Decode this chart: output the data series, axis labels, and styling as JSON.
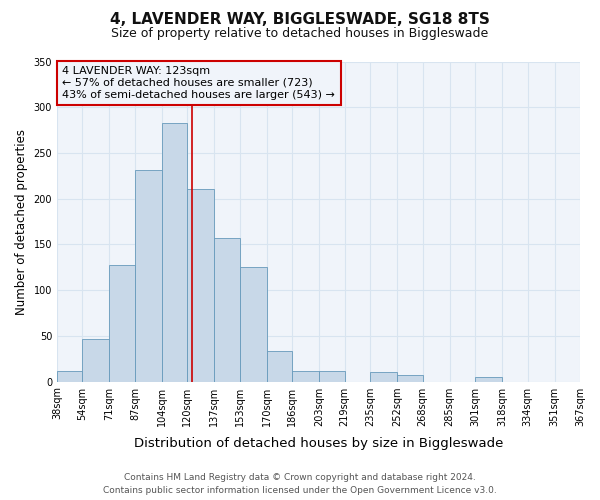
{
  "title": "4, LAVENDER WAY, BIGGLESWADE, SG18 8TS",
  "subtitle": "Size of property relative to detached houses in Biggleswade",
  "xlabel": "Distribution of detached houses by size in Biggleswade",
  "ylabel": "Number of detached properties",
  "bin_labels": [
    "38sqm",
    "54sqm",
    "71sqm",
    "87sqm",
    "104sqm",
    "120sqm",
    "137sqm",
    "153sqm",
    "170sqm",
    "186sqm",
    "203sqm",
    "219sqm",
    "235sqm",
    "252sqm",
    "268sqm",
    "285sqm",
    "301sqm",
    "318sqm",
    "334sqm",
    "351sqm",
    "367sqm"
  ],
  "bin_edges": [
    38,
    54,
    71,
    87,
    104,
    120,
    137,
    153,
    170,
    186,
    203,
    219,
    235,
    252,
    268,
    285,
    301,
    318,
    334,
    351,
    367
  ],
  "bar_heights": [
    12,
    47,
    127,
    231,
    283,
    211,
    157,
    125,
    33,
    12,
    12,
    0,
    10,
    7,
    0,
    0,
    5,
    0,
    0,
    0
  ],
  "bar_facecolor": "#c8d8e8",
  "bar_edgecolor": "#6699bb",
  "property_line_x": 123,
  "property_line_color": "#cc0000",
  "ylim": [
    0,
    350
  ],
  "yticks": [
    0,
    50,
    100,
    150,
    200,
    250,
    300,
    350
  ],
  "annotation_text": "4 LAVENDER WAY: 123sqm\n← 57% of detached houses are smaller (723)\n43% of semi-detached houses are larger (543) →",
  "annotation_box_color": "#cc0000",
  "footer_line1": "Contains HM Land Registry data © Crown copyright and database right 2024.",
  "footer_line2": "Contains public sector information licensed under the Open Government Licence v3.0.",
  "bg_color": "#ffffff",
  "plot_bg_color": "#f0f4fa",
  "grid_color": "#d8e4f0",
  "title_fontsize": 11,
  "subtitle_fontsize": 9,
  "xlabel_fontsize": 9.5,
  "ylabel_fontsize": 8.5,
  "tick_fontsize": 7,
  "footer_fontsize": 6.5,
  "annotation_fontsize": 8
}
